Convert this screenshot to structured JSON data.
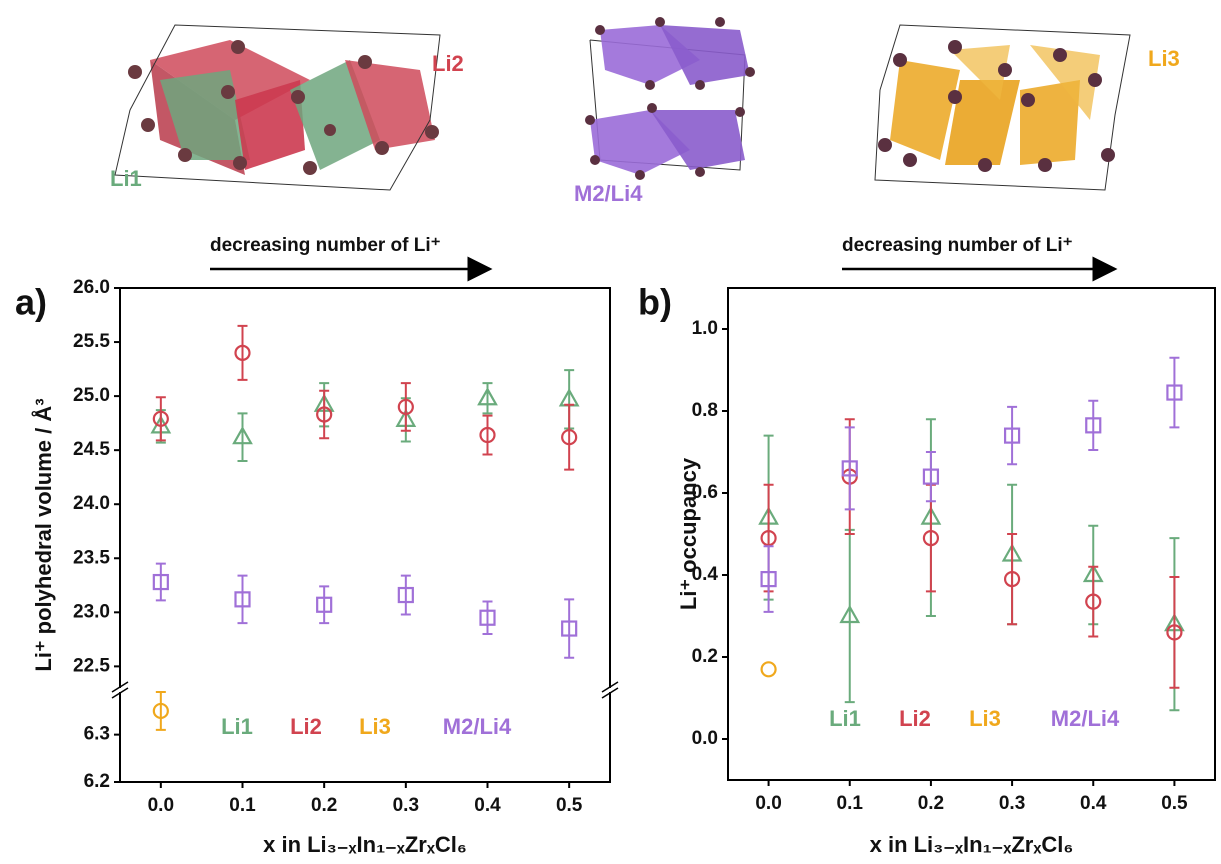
{
  "structures": {
    "labels": [
      "Li2",
      "Li1",
      "M2/Li4",
      "Li3"
    ]
  },
  "arrows": [
    "decreasing number of Li⁺",
    "decreasing number of Li⁺"
  ],
  "chart_data": [
    {
      "type": "scatter",
      "panel": "a)",
      "x_label": "x in Li₃₋ₓIn₁₋ₓZrₓCl₆",
      "y_label": "Li⁺ polyhedral volume / Å³",
      "x": [
        0,
        0.1,
        0.2,
        0.3,
        0.4,
        0.5
      ],
      "xlim": [
        -0.05,
        0.55
      ],
      "xticks": [
        {
          "value": 0,
          "label": "0.0"
        },
        0.1,
        0.2,
        0.3,
        0.4,
        0.5
      ],
      "ylim": [
        22.3,
        26.0
      ],
      "yticks": [
        {
          "value": 22.5,
          "label": "22.5"
        },
        {
          "value": 23,
          "label": "23.0"
        },
        23.5,
        {
          "value": 24,
          "label": "24.0"
        },
        24.5,
        {
          "value": 25,
          "label": "25.0"
        },
        25.5,
        {
          "value": 26,
          "label": "26.0"
        }
      ],
      "lower_ylim": [
        6.2,
        6.39
      ],
      "lower_yticks": [
        6.2,
        6.3
      ],
      "legend_position": "bottom",
      "series": [
        {
          "name": "Li1",
          "color": "#6aab7c",
          "marker": "triangle",
          "values": [
            24.72,
            24.62,
            24.92,
            24.78,
            24.98,
            24.97
          ],
          "errors": [
            0.15,
            0.22,
            0.2,
            0.2,
            0.14,
            0.27
          ]
        },
        {
          "name": "Li2",
          "color": "#d1434f",
          "marker": "circle",
          "values": [
            24.79,
            25.4,
            24.83,
            24.9,
            24.64,
            24.62
          ],
          "errors": [
            0.2,
            0.25,
            0.22,
            0.22,
            0.18,
            0.3
          ]
        },
        {
          "name": "Li3",
          "color": "#f0a81c",
          "marker": "circle",
          "axis": "lower",
          "values": [
            6.35,
            null,
            null,
            null,
            null,
            null
          ],
          "errors": [
            0.04,
            null,
            null,
            null,
            null,
            null
          ]
        },
        {
          "name": "M2/Li4",
          "color": "#a070d8",
          "marker": "square",
          "values": [
            23.28,
            23.12,
            23.07,
            23.16,
            22.95,
            22.85
          ],
          "errors": [
            0.17,
            0.22,
            0.17,
            0.18,
            0.15,
            0.27
          ]
        }
      ]
    },
    {
      "type": "scatter",
      "panel": "b)",
      "x_label": "x in Li₃₋ₓIn₁₋ₓZrₓCl₆",
      "y_label": "Li⁺ occupancy",
      "x": [
        0,
        0.1,
        0.2,
        0.3,
        0.4,
        0.5
      ],
      "xlim": [
        -0.05,
        0.55
      ],
      "xticks": [
        {
          "value": 0,
          "label": "0.0"
        },
        0.1,
        0.2,
        0.3,
        0.4,
        0.5
      ],
      "ylim": [
        -0.1,
        1.1
      ],
      "yticks": [
        {
          "value": 0,
          "label": "0.0"
        },
        0.2,
        0.4,
        0.6,
        0.8,
        {
          "value": 1,
          "label": "1.0"
        }
      ],
      "legend_position": "bottom",
      "series": [
        {
          "name": "Li1",
          "color": "#6aab7c",
          "marker": "triangle",
          "values": [
            0.54,
            0.3,
            0.54,
            0.45,
            0.4,
            0.28
          ],
          "errors": [
            0.2,
            0.21,
            0.24,
            0.17,
            0.12,
            0.21
          ]
        },
        {
          "name": "Li2",
          "color": "#d1434f",
          "marker": "circle",
          "values": [
            0.49,
            0.64,
            0.49,
            0.39,
            0.335,
            0.26
          ],
          "errors": [
            0.13,
            0.14,
            0.13,
            0.11,
            0.085,
            0.135
          ]
        },
        {
          "name": "Li3",
          "color": "#f0a81c",
          "marker": "circle",
          "values": [
            0.17,
            null,
            null,
            null,
            null,
            null
          ]
        },
        {
          "name": "M2/Li4",
          "color": "#a070d8",
          "marker": "square",
          "values": [
            0.39,
            0.66,
            0.64,
            0.74,
            0.765,
            0.845
          ],
          "errors": [
            0.08,
            0.1,
            0.06,
            0.07,
            0.06,
            0.085
          ]
        }
      ]
    }
  ]
}
